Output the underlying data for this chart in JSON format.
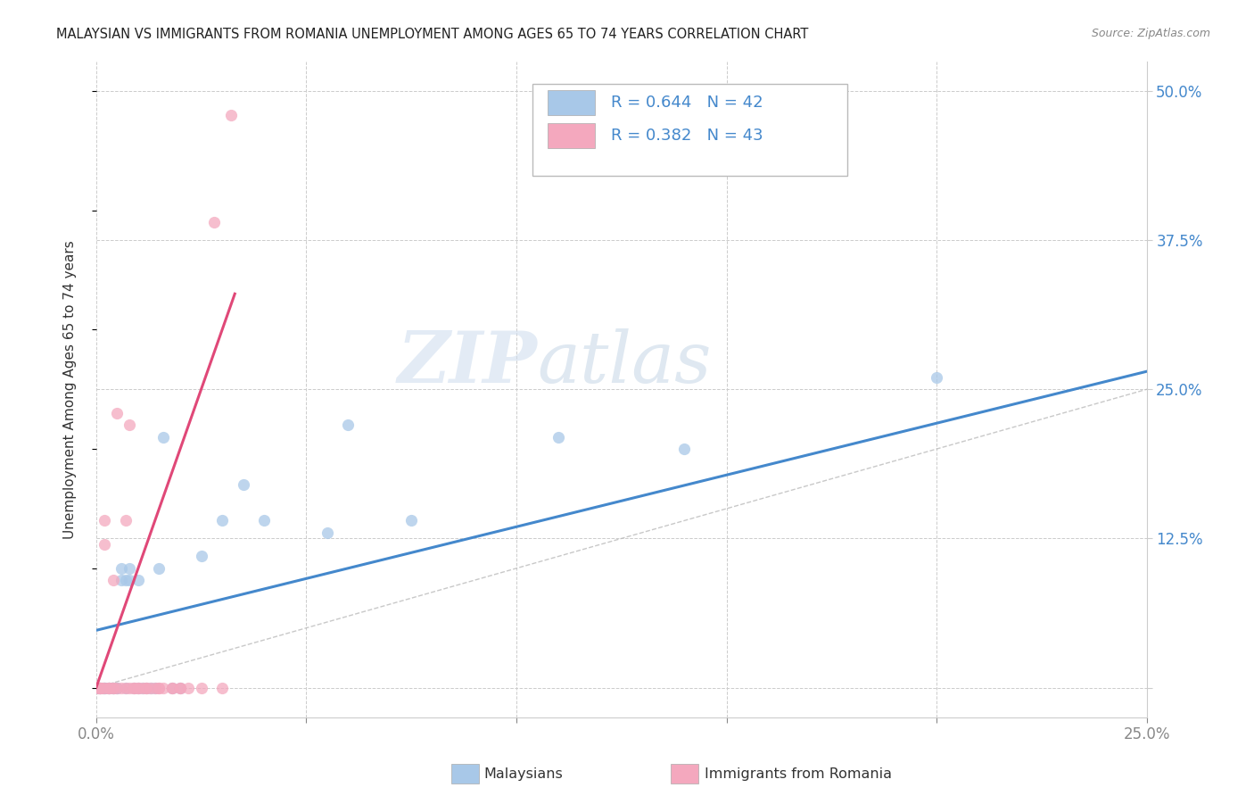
{
  "title": "MALAYSIAN VS IMMIGRANTS FROM ROMANIA UNEMPLOYMENT AMONG AGES 65 TO 74 YEARS CORRELATION CHART",
  "source": "Source: ZipAtlas.com",
  "ylabel": "Unemployment Among Ages 65 to 74 years",
  "xlim": [
    0.0,
    0.25
  ],
  "ylim": [
    -0.025,
    0.525
  ],
  "xticks": [
    0.0,
    0.05,
    0.1,
    0.15,
    0.2,
    0.25
  ],
  "xticklabels": [
    "0.0%",
    "",
    "",
    "",
    "",
    "25.0%"
  ],
  "yticks_right": [
    0.0,
    0.125,
    0.25,
    0.375,
    0.5
  ],
  "ytick_right_labels": [
    "",
    "12.5%",
    "25.0%",
    "37.5%",
    "50.0%"
  ],
  "legend_r1": "0.644",
  "legend_n1": "42",
  "legend_r2": "0.382",
  "legend_n2": "43",
  "color_blue": "#a8c8e8",
  "color_pink": "#f4a8be",
  "color_blue_line": "#4488cc",
  "color_pink_line": "#e04878",
  "color_diag": "#bbbbbb",
  "watermark_zip": "ZIP",
  "watermark_atlas": "atlas",
  "legend_label1": "Malaysians",
  "legend_label2": "Immigrants from Romania",
  "background_color": "#ffffff",
  "title_color": "#222222",
  "grid_color": "#cccccc",
  "malaysians_x": [
    0.0005,
    0.001,
    0.001,
    0.0015,
    0.002,
    0.002,
    0.002,
    0.003,
    0.003,
    0.003,
    0.004,
    0.004,
    0.004,
    0.005,
    0.005,
    0.006,
    0.006,
    0.007,
    0.007,
    0.008,
    0.008,
    0.009,
    0.01,
    0.01,
    0.011,
    0.012,
    0.013,
    0.014,
    0.015,
    0.016,
    0.018,
    0.02,
    0.025,
    0.03,
    0.035,
    0.04,
    0.055,
    0.06,
    0.075,
    0.11,
    0.14,
    0.2
  ],
  "malaysians_y": [
    0.0,
    0.0,
    0.0,
    0.0,
    0.0,
    0.0,
    0.0,
    0.0,
    0.0,
    0.0,
    0.0,
    0.0,
    0.0,
    0.0,
    0.0,
    0.09,
    0.1,
    0.09,
    0.0,
    0.1,
    0.09,
    0.0,
    0.09,
    0.0,
    0.0,
    0.0,
    0.0,
    0.0,
    0.1,
    0.21,
    0.0,
    0.0,
    0.11,
    0.14,
    0.17,
    0.14,
    0.13,
    0.22,
    0.14,
    0.21,
    0.2,
    0.26
  ],
  "romania_x": [
    0.0005,
    0.001,
    0.001,
    0.001,
    0.001,
    0.0015,
    0.002,
    0.002,
    0.002,
    0.003,
    0.003,
    0.003,
    0.004,
    0.004,
    0.004,
    0.005,
    0.005,
    0.006,
    0.007,
    0.007,
    0.008,
    0.008,
    0.009,
    0.009,
    0.01,
    0.01,
    0.011,
    0.012,
    0.012,
    0.013,
    0.014,
    0.015,
    0.015,
    0.016,
    0.018,
    0.018,
    0.02,
    0.02,
    0.022,
    0.025,
    0.028,
    0.03,
    0.032
  ],
  "romania_y": [
    0.0,
    0.0,
    0.0,
    0.0,
    0.0,
    0.0,
    0.0,
    0.12,
    0.14,
    0.0,
    0.0,
    0.0,
    0.09,
    0.0,
    0.0,
    0.23,
    0.0,
    0.0,
    0.14,
    0.0,
    0.22,
    0.0,
    0.0,
    0.0,
    0.0,
    0.0,
    0.0,
    0.0,
    0.0,
    0.0,
    0.0,
    0.0,
    0.0,
    0.0,
    0.0,
    0.0,
    0.0,
    0.0,
    0.0,
    0.0,
    0.39,
    0.0,
    0.48
  ],
  "blue_line_x0": 0.0,
  "blue_line_y0": 0.048,
  "blue_line_x1": 0.25,
  "blue_line_y1": 0.265,
  "pink_line_x0": 0.0,
  "pink_line_y0": 0.0,
  "pink_line_x1": 0.033,
  "pink_line_y1": 0.33
}
